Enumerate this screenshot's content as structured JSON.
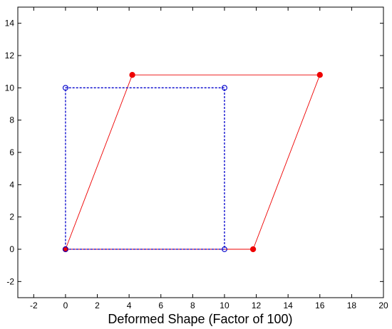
{
  "chart_data": {
    "type": "line",
    "title": "",
    "xlabel": "Deformed Shape (Factor of 100)",
    "ylabel": "",
    "xlim": [
      -3,
      20
    ],
    "ylim": [
      -3,
      15
    ],
    "xticks": [
      -2,
      0,
      2,
      4,
      6,
      8,
      10,
      12,
      14,
      16,
      18,
      20
    ],
    "yticks": [
      -2,
      0,
      2,
      4,
      6,
      8,
      10,
      12,
      14
    ],
    "xtick_labels": [
      "-2",
      "0",
      "2",
      "4",
      "6",
      "8",
      "10",
      "12",
      "14",
      "16",
      "18",
      "20"
    ],
    "ytick_labels": [
      "-2",
      "0",
      "2",
      "4",
      "6",
      "8",
      "10",
      "12",
      "14"
    ],
    "grid": false,
    "legend": "none",
    "series": [
      {
        "style": "dashed",
        "marker": "open-circle",
        "color": "#0000cc",
        "x": [
          0,
          10,
          10,
          0,
          0
        ],
        "y": [
          0,
          0,
          10,
          10,
          0
        ]
      },
      {
        "style": "solid",
        "marker": "filled-circle",
        "color": "#ee0000",
        "x": [
          0,
          11.8,
          16.0,
          4.2,
          0
        ],
        "y": [
          0,
          0,
          10.8,
          10.8,
          0
        ]
      }
    ]
  }
}
